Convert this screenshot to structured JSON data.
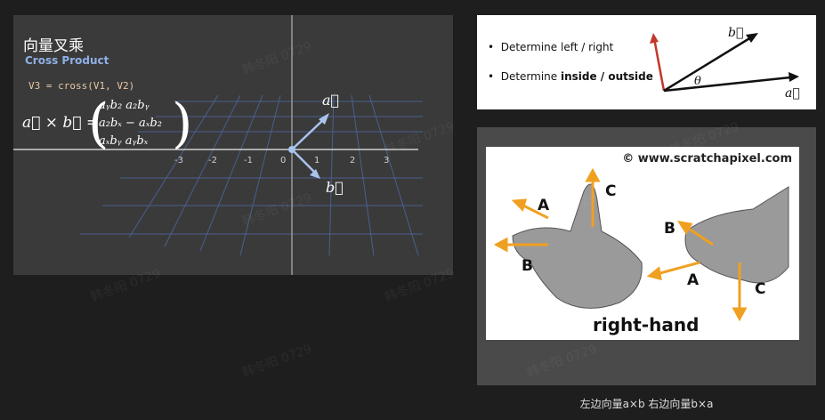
{
  "left_panel": {
    "title_zh": "向量叉乘",
    "title_en": "Cross Product",
    "code": "V3 = cross(V1, V2)",
    "formula": {
      "lhs": "a⃗ × b⃗ =",
      "rows": [
        "a_y b_z − a_z b_y",
        "a_z b_x − a_x b_z",
        "a_x b_y − a_y b_x"
      ],
      "row_display": [
        "aᵧb₂   a₂bᵧ",
        "a₂bₓ − aₓb₂",
        "aₓbᵧ   aᵧbₓ"
      ]
    },
    "axis_ticks": [
      "-3",
      "-2",
      "-1",
      "0",
      "1",
      "2",
      "3"
    ],
    "vector_a_label": "a⃗",
    "vector_b_label": "b⃗",
    "colors": {
      "background": "#3a3a3a",
      "grid": "#4a5f8f",
      "vector": "#a9c4ee"
    }
  },
  "top_right": {
    "bullets": [
      {
        "prefix": "Determine left / right",
        "bold": "",
        "suffix": ""
      },
      {
        "prefix": "Determine ",
        "bold": "inside / outside",
        "suffix": ""
      }
    ],
    "vector_b_label": "b⃗",
    "vector_a_label": "a⃗",
    "theta_label": "θ",
    "colors": {
      "normal_vector": "#c0392b"
    }
  },
  "bottom_right": {
    "copyright": "© www.scratchapixel.com",
    "caption_image": "right-hand",
    "hand_left_labels": [
      "A",
      "B",
      "C"
    ],
    "hand_right_labels": [
      "B",
      "A",
      "C"
    ],
    "colors": {
      "arrow": "#f0a020"
    }
  },
  "caption": "左边向量a×b 右边向量b×a",
  "watermark": "韩冬阳 0729"
}
